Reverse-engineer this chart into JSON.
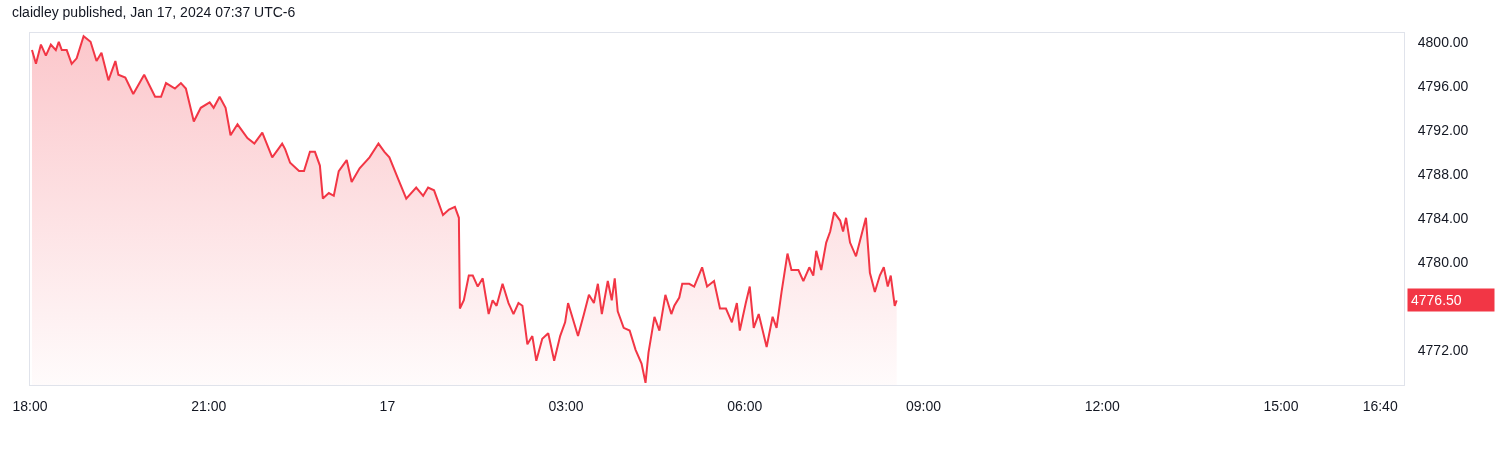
{
  "chart_data": {
    "type": "area",
    "title": "claidley published, Jan 17, 2024 07:37 UTC-6",
    "x": [
      "2024-01-16T18:02",
      "2024-01-16T18:06",
      "2024-01-16T18:11",
      "2024-01-16T18:16",
      "2024-01-16T18:21",
      "2024-01-16T18:26",
      "2024-01-16T18:29",
      "2024-01-16T18:32",
      "2024-01-16T18:37",
      "2024-01-16T18:42",
      "2024-01-16T18:47",
      "2024-01-16T18:54",
      "2024-01-16T19:01",
      "2024-01-16T19:07",
      "2024-01-16T19:12",
      "2024-01-16T19:19",
      "2024-01-16T19:26",
      "2024-01-16T19:29",
      "2024-01-16T19:36",
      "2024-01-16T19:44",
      "2024-01-16T19:55",
      "2024-01-16T20:06",
      "2024-01-16T20:12",
      "2024-01-16T20:17",
      "2024-01-16T20:26",
      "2024-01-16T20:32",
      "2024-01-16T20:37",
      "2024-01-16T20:45",
      "2024-01-16T20:52",
      "2024-01-16T21:01",
      "2024-01-16T21:05",
      "2024-01-16T21:11",
      "2024-01-16T21:17",
      "2024-01-16T21:22",
      "2024-01-16T21:29",
      "2024-01-16T21:39",
      "2024-01-16T21:46",
      "2024-01-16T21:54",
      "2024-01-16T22:04",
      "2024-01-16T22:14",
      "2024-01-16T22:17",
      "2024-01-16T22:22",
      "2024-01-16T22:31",
      "2024-01-16T22:36",
      "2024-01-16T22:42",
      "2024-01-16T22:47",
      "2024-01-16T22:52",
      "2024-01-16T22:55",
      "2024-01-16T23:01",
      "2024-01-16T23:06",
      "2024-01-16T23:11",
      "2024-01-16T23:19",
      "2024-01-16T23:24",
      "2024-01-16T23:32",
      "2024-01-16T23:42",
      "2024-01-16T23:51",
      "2024-01-16T23:57",
      "2024-01-17T00:02",
      "2024-01-17T00:11",
      "2024-01-17T00:19",
      "2024-01-17T00:29",
      "2024-01-17T00:36",
      "2024-01-17T00:41",
      "2024-01-17T00:47",
      "2024-01-17T00:56",
      "2024-01-17T01:02",
      "2024-01-17T01:08",
      "2024-01-17T01:12",
      "2024-01-17T01:13",
      "2024-01-17T01:17",
      "2024-01-17T01:22",
      "2024-01-17T01:26",
      "2024-01-17T01:31",
      "2024-01-17T01:36",
      "2024-01-17T01:42",
      "2024-01-17T01:46",
      "2024-01-17T01:50",
      "2024-01-17T01:56",
      "2024-01-17T02:02",
      "2024-01-17T02:07",
      "2024-01-17T02:12",
      "2024-01-17T02:16",
      "2024-01-17T02:21",
      "2024-01-17T02:26",
      "2024-01-17T02:30",
      "2024-01-17T02:36",
      "2024-01-17T02:42",
      "2024-01-17T02:48",
      "2024-01-17T02:54",
      "2024-01-17T02:59",
      "2024-01-17T03:02",
      "2024-01-17T03:07",
      "2024-01-17T03:12",
      "2024-01-17T03:18",
      "2024-01-17T03:23",
      "2024-01-17T03:28",
      "2024-01-17T03:32",
      "2024-01-17T03:36",
      "2024-01-17T03:42",
      "2024-01-17T03:46",
      "2024-01-17T03:49",
      "2024-01-17T03:52",
      "2024-01-17T03:58",
      "2024-01-17T04:04",
      "2024-01-17T04:10",
      "2024-01-17T04:16",
      "2024-01-17T04:20",
      "2024-01-17T04:23",
      "2024-01-17T04:29",
      "2024-01-17T04:34",
      "2024-01-17T04:40",
      "2024-01-17T04:46",
      "2024-01-17T04:49",
      "2024-01-17T04:54",
      "2024-01-17T04:57",
      "2024-01-17T05:04",
      "2024-01-17T05:09",
      "2024-01-17T05:17",
      "2024-01-17T05:22",
      "2024-01-17T05:29",
      "2024-01-17T05:35",
      "2024-01-17T05:41",
      "2024-01-17T05:47",
      "2024-01-17T05:52",
      "2024-01-17T05:55",
      "2024-01-17T06:01",
      "2024-01-17T06:05",
      "2024-01-17T06:09",
      "2024-01-17T06:14",
      "2024-01-17T06:22",
      "2024-01-17T06:28",
      "2024-01-17T06:32",
      "2024-01-17T06:37",
      "2024-01-17T06:43",
      "2024-01-17T06:47",
      "2024-01-17T06:54",
      "2024-01-17T06:59",
      "2024-01-17T07:05",
      "2024-01-17T07:09",
      "2024-01-17T07:12",
      "2024-01-17T07:17",
      "2024-01-17T07:22",
      "2024-01-17T07:26",
      "2024-01-17T07:30",
      "2024-01-17T07:36",
      "2024-01-17T07:39",
      "2024-01-17T07:42",
      "2024-01-17T07:46",
      "2024-01-17T07:52",
      "2024-01-17T07:57",
      "2024-01-17T08:02",
      "2024-01-17T08:06",
      "2024-01-17T08:11",
      "2024-01-17T08:16",
      "2024-01-17T08:20",
      "2024-01-17T08:24",
      "2024-01-17T08:27",
      "2024-01-17T08:31",
      "2024-01-17T08:33"
    ],
    "series": [
      {
        "color": "#f23645",
        "values": [
          4799.25,
          4798,
          4799.75,
          4798.75,
          4799.75,
          4799.25,
          4800,
          4799.25,
          4799.25,
          4798,
          4798.5,
          4800.5,
          4800,
          4798.25,
          4799,
          4796.5,
          4798.25,
          4797,
          4796.75,
          4795.25,
          4797,
          4795,
          4795,
          4796.25,
          4795.75,
          4796.25,
          4795.75,
          4792.75,
          4794,
          4794.5,
          4794,
          4795,
          4794,
          4791.5,
          4792.5,
          4791.25,
          4790.75,
          4791.75,
          4789.5,
          4790.75,
          4790.25,
          4789,
          4788.25,
          4788.25,
          4790,
          4790,
          4788.75,
          4785.75,
          4786.25,
          4786,
          4788.25,
          4789.25,
          4787.25,
          4788.5,
          4789.5,
          4790.75,
          4790,
          4789.5,
          4787.5,
          4785.75,
          4786.75,
          4786,
          4786.75,
          4786.5,
          4784.25,
          4784.75,
          4785,
          4784,
          4775.75,
          4776.5,
          4778.75,
          4778.75,
          4777.75,
          4778.5,
          4775.25,
          4776.5,
          4776,
          4778,
          4776.25,
          4775.25,
          4776.25,
          4776,
          4772.5,
          4773.25,
          4771,
          4773,
          4773.5,
          4771,
          4773.25,
          4774.5,
          4776.25,
          4774.75,
          4773.25,
          4775.25,
          4777,
          4776.25,
          4778,
          4775.25,
          4778.25,
          4776.5,
          4778.5,
          4775.5,
          4774,
          4773.75,
          4772,
          4770.75,
          4769,
          4771.75,
          4775,
          4773.75,
          4777,
          4775.25,
          4776,
          4776.75,
          4778,
          4778,
          4777.75,
          4779.5,
          4777.75,
          4778.25,
          4775.75,
          4775.75,
          4774.5,
          4776.25,
          4773.75,
          4776.25,
          4777.75,
          4774,
          4775.25,
          4772.25,
          4775,
          4774,
          4777.25,
          4780.75,
          4779.25,
          4779.25,
          4778.25,
          4779.5,
          4778.75,
          4781,
          4779.25,
          4781.75,
          4782.75,
          4784.5,
          4783.75,
          4782.75,
          4784,
          4781.75,
          4780.5,
          4782.25,
          4784,
          4779,
          4777.25,
          4778.75,
          4779.5,
          4777.75,
          4778.75,
          4776,
          4776.5
        ]
      }
    ],
    "xlim": [
      "2024-01-16T18:00",
      "2024-01-17T17:04"
    ],
    "xticks": [
      {
        "value": "2024-01-16T18:00",
        "label": "18:00"
      },
      {
        "value": "2024-01-16T21:00",
        "label": "21:00"
      },
      {
        "value": "2024-01-17T00:00",
        "label": "17"
      },
      {
        "value": "2024-01-17T03:00",
        "label": "03:00"
      },
      {
        "value": "2024-01-17T06:00",
        "label": "06:00"
      },
      {
        "value": "2024-01-17T09:00",
        "label": "09:00"
      },
      {
        "value": "2024-01-17T12:00",
        "label": "12:00"
      },
      {
        "value": "2024-01-17T15:00",
        "label": "15:00"
      },
      {
        "value": "2024-01-17T16:40",
        "label": "16:40"
      }
    ],
    "ylim": [
      4768.8,
      4800.8
    ],
    "yticks": [
      {
        "value": 4772,
        "label": "4772.00"
      },
      {
        "value": 4780,
        "label": "4780.00"
      },
      {
        "value": 4784,
        "label": "4784.00"
      },
      {
        "value": 4788,
        "label": "4788.00"
      },
      {
        "value": 4792,
        "label": "4792.00"
      },
      {
        "value": 4796,
        "label": "4796.00"
      },
      {
        "value": 4800,
        "label": "4800.00"
      }
    ],
    "annotations": [
      "4776.50"
    ]
  }
}
